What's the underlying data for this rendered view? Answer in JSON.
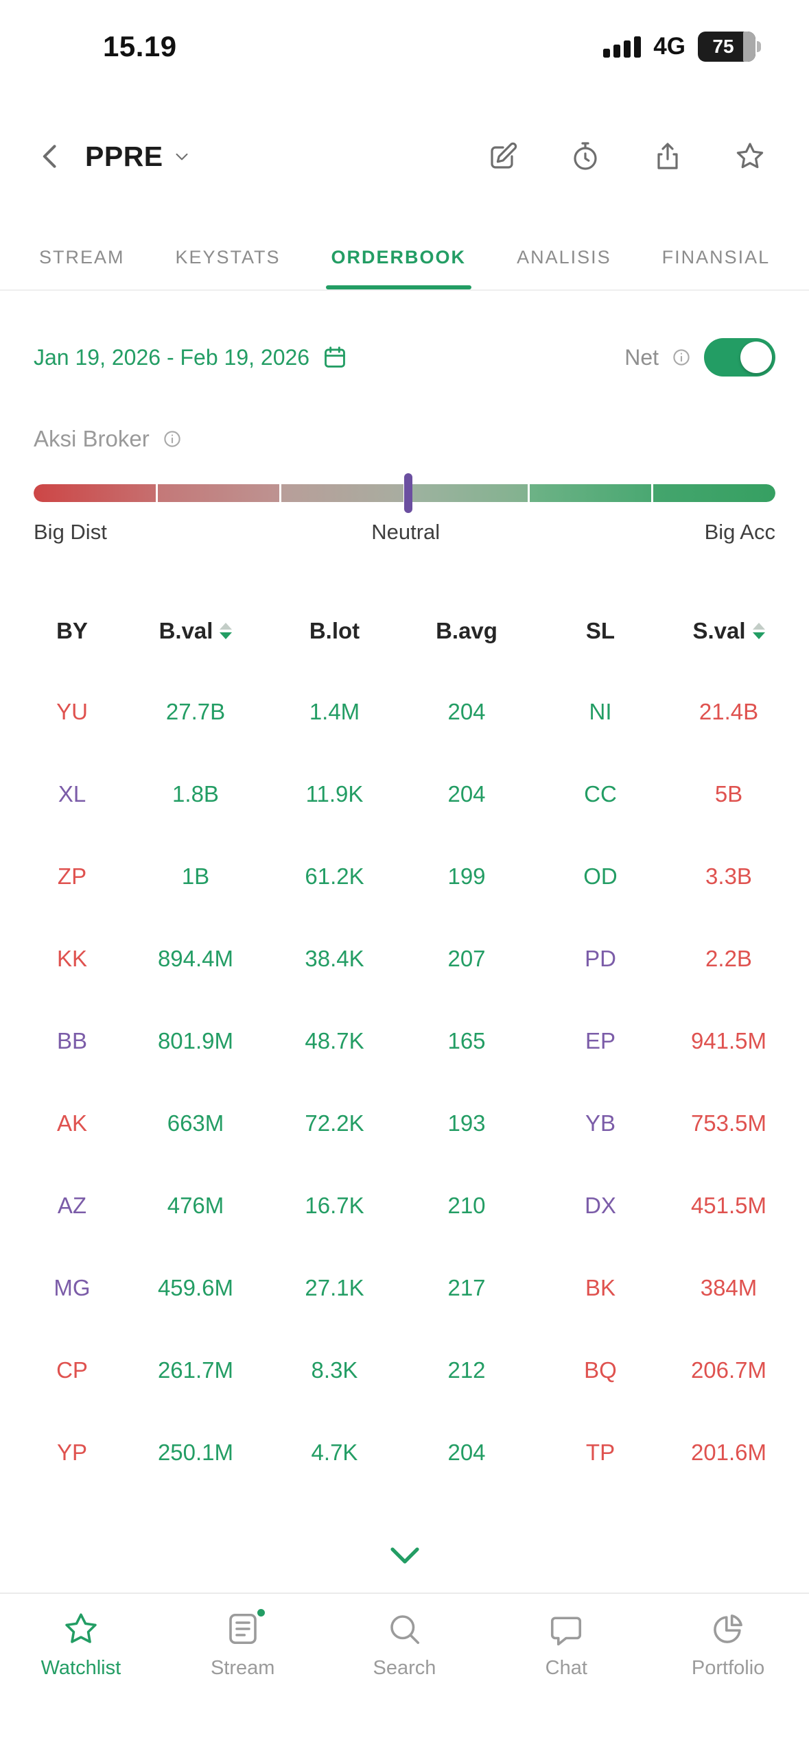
{
  "status_bar": {
    "time": "15.19",
    "network": "4G",
    "battery_percent": "75"
  },
  "header": {
    "ticker": "PPRE"
  },
  "tabs": [
    {
      "label": "STREAM",
      "active": false
    },
    {
      "label": "KEYSTATS",
      "active": false
    },
    {
      "label": "ORDERBOOK",
      "active": true
    },
    {
      "label": "ANALISIS",
      "active": false
    },
    {
      "label": "FINANSIAL",
      "active": false
    }
  ],
  "filter_bar": {
    "date_range": "Jan 19, 2026 - Feb 19, 2026",
    "net_label": "Net",
    "net_toggle_on": true
  },
  "broker_action": {
    "title": "Aksi Broker",
    "scale_left": "Big Dist",
    "scale_center": "Neutral",
    "scale_right": "Big Acc",
    "marker_position_pct": 50.5,
    "colors": {
      "accent_green": "#239d64",
      "red": "#df524f",
      "purple": "#7b5ca8",
      "marker_purple": "#6b4fa0"
    }
  },
  "orderbook_table": {
    "headers": [
      {
        "label": "BY",
        "sortable": false
      },
      {
        "label": "B.val",
        "sortable": true
      },
      {
        "label": "B.lot",
        "sortable": false
      },
      {
        "label": "B.avg",
        "sortable": false
      },
      {
        "label": "SL",
        "sortable": false
      },
      {
        "label": "S.val",
        "sortable": true
      }
    ],
    "rows": [
      {
        "by": "YU",
        "by_color": "red",
        "b_val": "27.7B",
        "b_lot": "1.4M",
        "b_avg": "204",
        "sl": "NI",
        "sl_color": "green",
        "s_val": "21.4B"
      },
      {
        "by": "XL",
        "by_color": "purple",
        "b_val": "1.8B",
        "b_lot": "11.9K",
        "b_avg": "204",
        "sl": "CC",
        "sl_color": "green",
        "s_val": "5B"
      },
      {
        "by": "ZP",
        "by_color": "red",
        "b_val": "1B",
        "b_lot": "61.2K",
        "b_avg": "199",
        "sl": "OD",
        "sl_color": "green",
        "s_val": "3.3B"
      },
      {
        "by": "KK",
        "by_color": "red",
        "b_val": "894.4M",
        "b_lot": "38.4K",
        "b_avg": "207",
        "sl": "PD",
        "sl_color": "purple",
        "s_val": "2.2B"
      },
      {
        "by": "BB",
        "by_color": "purple",
        "b_val": "801.9M",
        "b_lot": "48.7K",
        "b_avg": "165",
        "sl": "EP",
        "sl_color": "purple",
        "s_val": "941.5M"
      },
      {
        "by": "AK",
        "by_color": "red",
        "b_val": "663M",
        "b_lot": "72.2K",
        "b_avg": "193",
        "sl": "YB",
        "sl_color": "purple",
        "s_val": "753.5M"
      },
      {
        "by": "AZ",
        "by_color": "purple",
        "b_val": "476M",
        "b_lot": "16.7K",
        "b_avg": "210",
        "sl": "DX",
        "sl_color": "purple",
        "s_val": "451.5M"
      },
      {
        "by": "MG",
        "by_color": "purple",
        "b_val": "459.6M",
        "b_lot": "27.1K",
        "b_avg": "217",
        "sl": "BK",
        "sl_color": "red",
        "s_val": "384M"
      },
      {
        "by": "CP",
        "by_color": "red",
        "b_val": "261.7M",
        "b_lot": "8.3K",
        "b_avg": "212",
        "sl": "BQ",
        "sl_color": "red",
        "s_val": "206.7M"
      },
      {
        "by": "YP",
        "by_color": "red",
        "b_val": "250.1M",
        "b_lot": "4.7K",
        "b_avg": "204",
        "sl": "TP",
        "sl_color": "red",
        "s_val": "201.6M"
      }
    ]
  },
  "bottom_nav": [
    {
      "label": "Watchlist",
      "active": true,
      "badge": false
    },
    {
      "label": "Stream",
      "active": false,
      "badge": true
    },
    {
      "label": "Search",
      "active": false,
      "badge": false
    },
    {
      "label": "Chat",
      "active": false,
      "badge": false
    },
    {
      "label": "Portfolio",
      "active": false,
      "badge": false
    }
  ]
}
